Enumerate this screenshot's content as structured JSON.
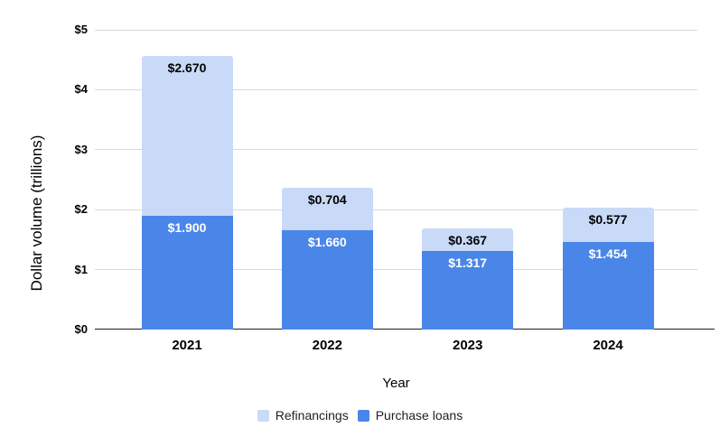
{
  "chart_data": {
    "type": "bar",
    "stacked": true,
    "xlabel": "Year",
    "ylabel": "Dollar volume (trillions)",
    "categories": [
      "2021",
      "2022",
      "2023",
      "2024"
    ],
    "series": [
      {
        "name": "Purchase loans",
        "color": "#4a86e8",
        "label_color": "#ffffff",
        "values": [
          1.9,
          1.66,
          1.317,
          1.454
        ],
        "labels": [
          "$1.900",
          "$1.660",
          "$1.317",
          "$1.454"
        ]
      },
      {
        "name": "Refinancings",
        "color": "#c9daf8",
        "label_color": "#000000",
        "values": [
          2.67,
          0.704,
          0.367,
          0.577
        ],
        "labels": [
          "$2.670",
          "$0.704",
          "$0.367",
          "$0.577"
        ]
      }
    ],
    "ylim": [
      0,
      5
    ],
    "y_ticks": [
      {
        "label": "$0",
        "value": 0
      },
      {
        "label": "$1",
        "value": 1
      },
      {
        "label": "$2",
        "value": 2
      },
      {
        "label": "$3",
        "value": 3
      },
      {
        "label": "$4",
        "value": 4
      },
      {
        "label": "$5",
        "value": 5
      }
    ],
    "grid": true,
    "legend_position": "bottom",
    "legend": [
      {
        "label": "Refinancings",
        "color": "#c9daf8"
      },
      {
        "label": "Purchase loans",
        "color": "#4a86e8"
      }
    ],
    "colors": {
      "gridline": "#d9d9d9",
      "axis_line": "#212121",
      "text": "#000000"
    }
  }
}
